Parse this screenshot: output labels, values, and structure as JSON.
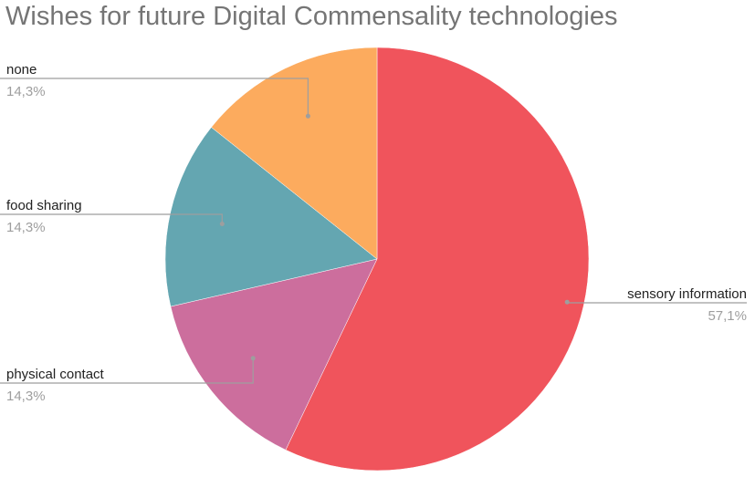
{
  "chart_data": {
    "type": "pie",
    "title": "Wishes for future Digital Commensality technologies",
    "slices": [
      {
        "label": "sensory information",
        "value": 57.1,
        "display": "57,1%",
        "color": "#f0545c"
      },
      {
        "label": "physical contact",
        "value": 14.3,
        "display": "14,3%",
        "color": "#cc6e9d"
      },
      {
        "label": "food sharing",
        "value": 14.3,
        "display": "14,3%",
        "color": "#64a6b1"
      },
      {
        "label": "none",
        "value": 14.3,
        "display": "14,3%",
        "color": "#fcab5e"
      }
    ],
    "start": "top",
    "direction": "clockwise",
    "legend": "none",
    "label_style": "callout"
  }
}
